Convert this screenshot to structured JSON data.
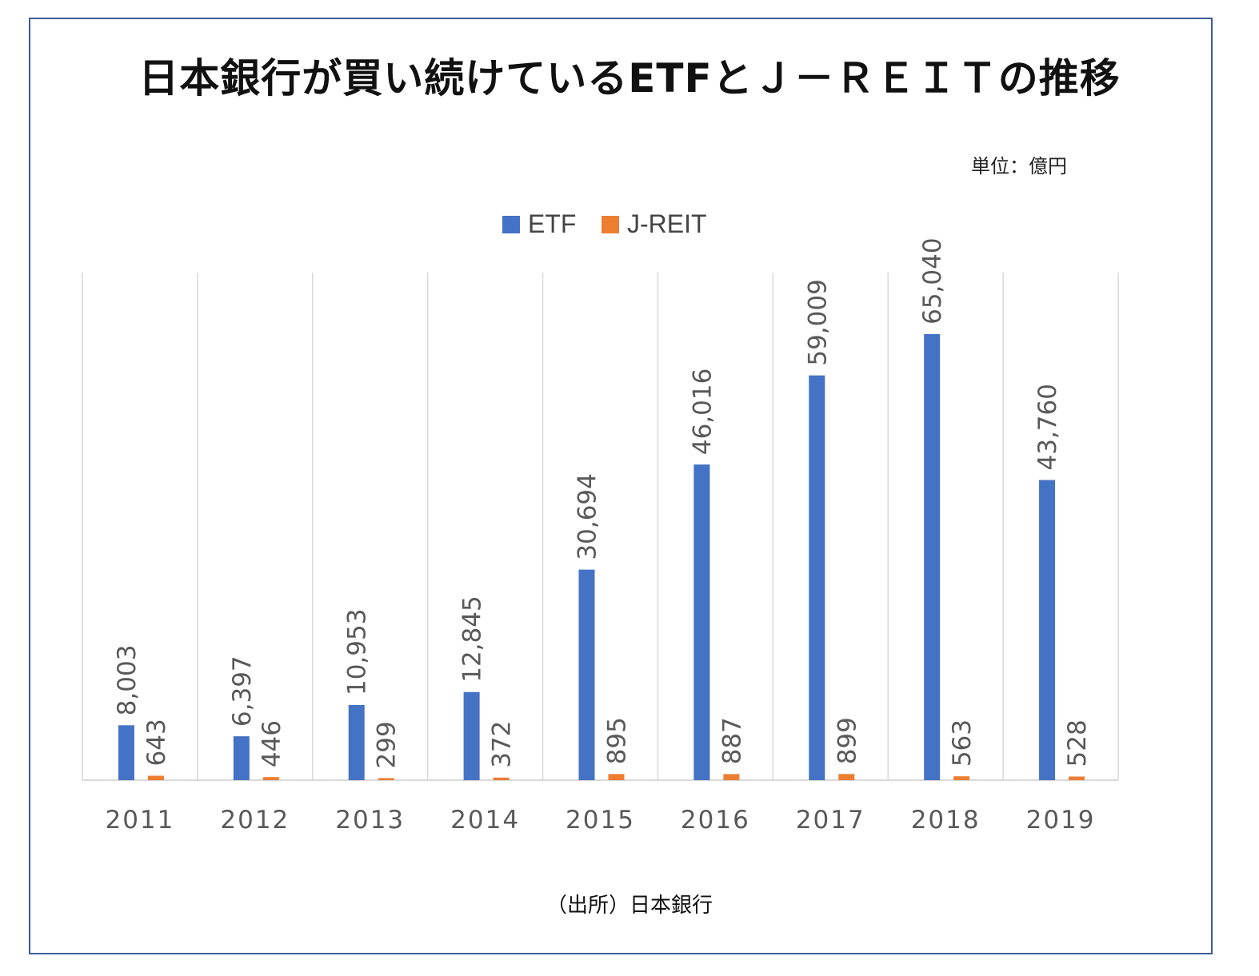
{
  "title": "日本銀行が買い続けているETFとＪ－ＲＥＩＴの推移",
  "unit_label": "単位：億円",
  "source_label": "（出所）日本銀行",
  "colors": {
    "etf": "#4472c4",
    "jreit": "#ed7d31",
    "grid": "#d9d9d9",
    "label": "#595959",
    "frame": "#3b5b9a"
  },
  "legend": [
    {
      "name": "ETF",
      "color": "#4472c4"
    },
    {
      "name": "J-REIT",
      "color": "#ed7d31"
    }
  ],
  "chart_data": {
    "type": "bar",
    "categories": [
      "2011",
      "2012",
      "2013",
      "2014",
      "2015",
      "2016",
      "2017",
      "2018",
      "2019"
    ],
    "series": [
      {
        "name": "ETF",
        "values": [
          8003,
          6397,
          10953,
          12845,
          30694,
          46016,
          59009,
          65040,
          43760
        ],
        "labels": [
          "8,003",
          "6,397",
          "10,953",
          "12,845",
          "30,694",
          "46,016",
          "59,009",
          "65,040",
          "43,760"
        ]
      },
      {
        "name": "J-REIT",
        "values": [
          643,
          446,
          299,
          372,
          895,
          887,
          899,
          563,
          528
        ],
        "labels": [
          "643",
          "446",
          "299",
          "372",
          "895",
          "887",
          "899",
          "563",
          "528"
        ]
      }
    ],
    "ylim": [
      0,
      74000
    ],
    "legend_position": "top",
    "data_labels": "rotated-vertical",
    "gridlines": "vertical-category-separators"
  }
}
